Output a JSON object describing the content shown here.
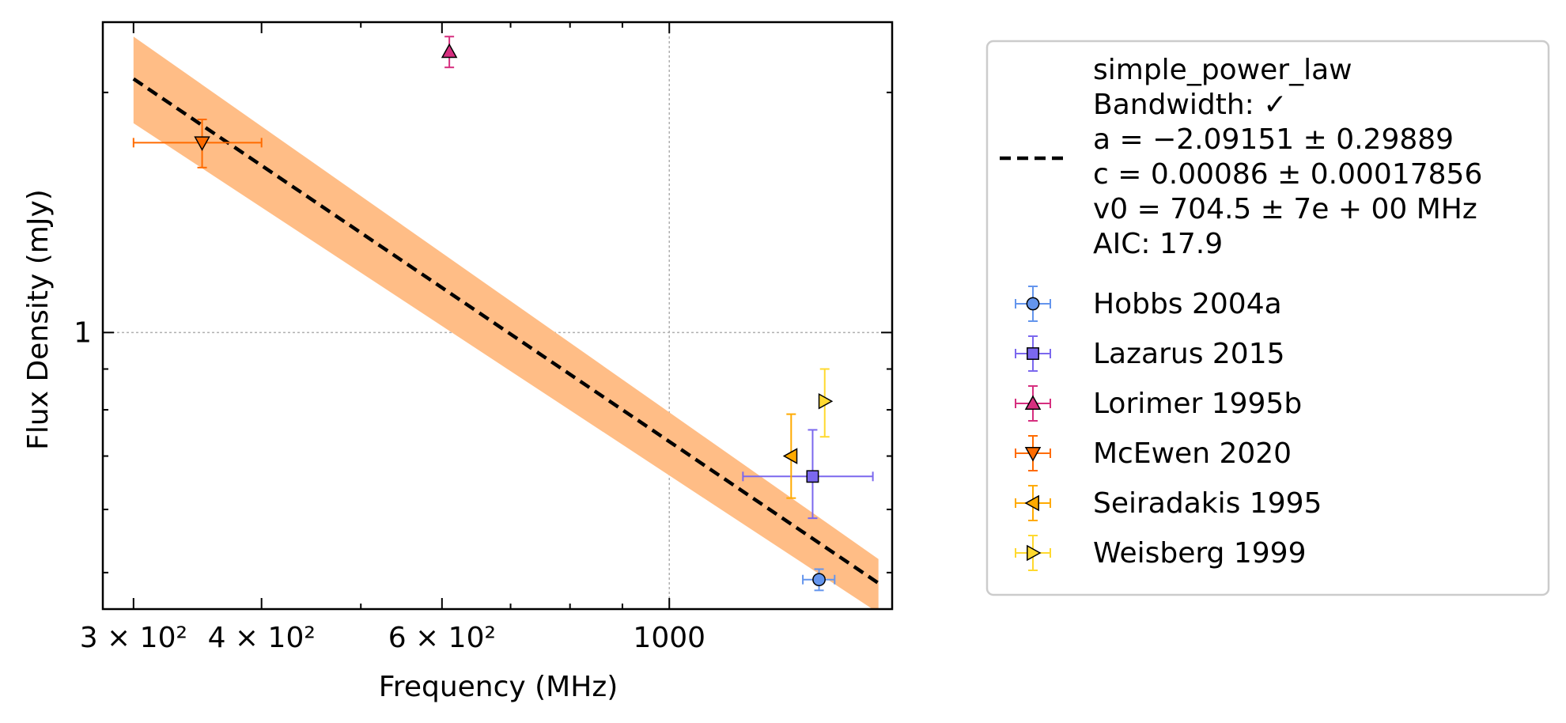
{
  "chart_data": {
    "type": "scatter",
    "xlabel": "Frequency (MHz)",
    "ylabel": "Flux Density (mJy)",
    "x_scale": "log",
    "y_scale": "log",
    "xlim": [
      280,
      1650
    ],
    "ylim": [
      0.45,
      2.45
    ],
    "x_ticks": [
      {
        "value": 300,
        "label": "3 × 10²"
      },
      {
        "value": 400,
        "label": "4 × 10²"
      },
      {
        "value": 600,
        "label": "6 × 10²"
      },
      {
        "value": 1000,
        "label": "1000"
      }
    ],
    "y_ticks": [
      {
        "value": 1,
        "label": "1"
      }
    ],
    "grid": true,
    "legend_position": "outside right",
    "fit": {
      "model": "simple_power_law",
      "label_lines": [
        "simple_power_law",
        "Bandwidth: ✓",
        "a = −2.09151 ± 0.29889",
        "c = 0.00086 ± 0.00017856",
        "v0 = 704.5 ± 7e + 00 MHz",
        "AIC: 17.9"
      ],
      "a": -2.09151,
      "c": 0.00086,
      "v0": 704.5,
      "x_range": [
        300,
        1600
      ],
      "line_points": [
        [
          300,
          2.08
        ],
        [
          1600,
          0.485
        ]
      ],
      "band_upper": [
        [
          300,
          2.35
        ],
        [
          1600,
          0.52
        ]
      ],
      "band_lower": [
        [
          300,
          1.83
        ],
        [
          1600,
          0.445
        ]
      ],
      "line_color": "#000000",
      "band_color": "#ffbd86"
    },
    "series": [
      {
        "name": "Hobbs 2004a",
        "marker": "circle",
        "color": "#6495ed",
        "points": [
          {
            "x": 1400,
            "y": 0.49,
            "yerr": [
              0.015,
              0.015
            ],
            "xerr": [
              50,
              50
            ]
          }
        ]
      },
      {
        "name": "Lazarus 2015",
        "marker": "square",
        "color": "#7b68ee",
        "points": [
          {
            "x": 1380,
            "y": 0.66,
            "yerr": [
              0.075,
              0.095
            ],
            "xerr": [
              200,
              200
            ]
          }
        ]
      },
      {
        "name": "Lorimer 1995b",
        "marker": "triangle-up",
        "color": "#d62f7f",
        "points": [
          {
            "x": 610,
            "y": 2.25,
            "yerr": [
              0.1,
              0.1
            ],
            "xerr": [
              0,
              0
            ]
          }
        ]
      },
      {
        "name": "McEwen 2020",
        "marker": "triangle-down",
        "color": "#ff6b00",
        "points": [
          {
            "x": 350,
            "y": 1.73,
            "yerr": [
              0.12,
              0.12
            ],
            "xerr": [
              50,
              50
            ]
          }
        ]
      },
      {
        "name": "Seiradakis 1995",
        "marker": "triangle-left",
        "color": "#ffaa00",
        "points": [
          {
            "x": 1315,
            "y": 0.7,
            "yerr": [
              0.08,
              0.09
            ],
            "xerr": [
              0,
              0
            ]
          }
        ]
      },
      {
        "name": "Weisberg 1999",
        "marker": "triangle-right",
        "color": "#ffd92f",
        "points": [
          {
            "x": 1418,
            "y": 0.82,
            "yerr": [
              0.08,
              0.08
            ],
            "xerr": [
              0,
              0
            ]
          }
        ]
      }
    ]
  }
}
